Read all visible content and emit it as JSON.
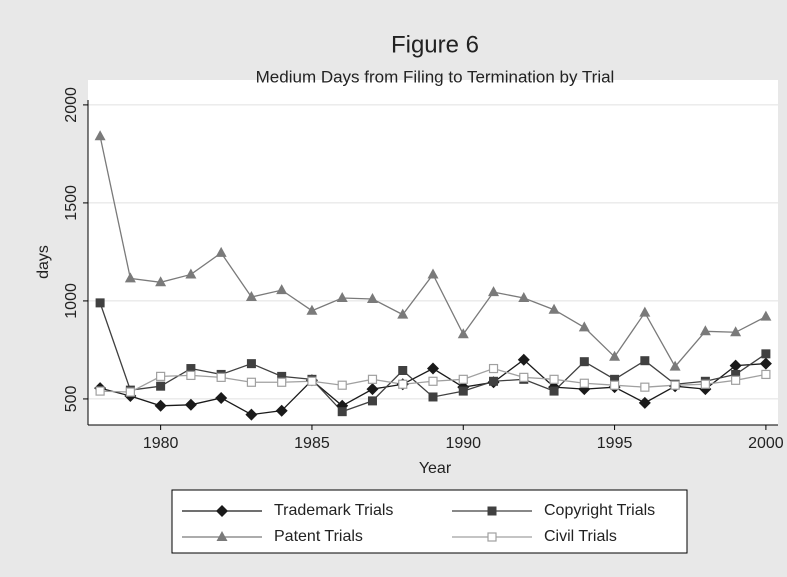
{
  "chart_data": {
    "type": "line",
    "title": "Figure 6",
    "subtitle": "Medium Days from Filing to Termination by Trial",
    "x_label": "Year",
    "y_label": "days",
    "x": [
      1978,
      1979,
      1980,
      1981,
      1982,
      1983,
      1984,
      1985,
      1986,
      1987,
      1988,
      1989,
      1990,
      1991,
      1992,
      1993,
      1994,
      1995,
      1996,
      1997,
      1998,
      1999,
      2000
    ],
    "series": [
      {
        "name": "Trademark Trials",
        "color": "#1a1a1a",
        "marker": "diamond",
        "values": [
          555,
          515,
          465,
          470,
          505,
          420,
          440,
          595,
          465,
          550,
          575,
          655,
          560,
          585,
          700,
          560,
          550,
          560,
          480,
          565,
          550,
          670,
          680
        ]
      },
      {
        "name": "Copyright Trials",
        "color": "#404040",
        "marker": "square",
        "values": [
          990,
          545,
          565,
          655,
          625,
          680,
          615,
          600,
          435,
          490,
          645,
          510,
          540,
          590,
          600,
          540,
          690,
          600,
          695,
          575,
          590,
          625,
          730
        ]
      },
      {
        "name": "Patent Trials",
        "color": "#7a7a7a",
        "marker": "triangle",
        "values": [
          1840,
          1115,
          1095,
          1135,
          1245,
          1020,
          1055,
          950,
          1015,
          1010,
          930,
          1135,
          830,
          1045,
          1015,
          955,
          865,
          715,
          940,
          665,
          845,
          840,
          920
        ]
      },
      {
        "name": "Civil Trials",
        "color": "#a0a0a0",
        "marker": "hollow-square",
        "values": [
          540,
          535,
          615,
          620,
          610,
          585,
          585,
          590,
          570,
          600,
          575,
          590,
          600,
          655,
          610,
          600,
          580,
          570,
          560,
          570,
          575,
          595,
          625
        ]
      }
    ],
    "xlim": [
      1977.6,
      2000.4
    ],
    "xticks": [
      1980,
      1985,
      1990,
      1995,
      2000
    ],
    "ylim": [
      367,
      2127
    ],
    "yticks": [
      500,
      1000,
      1500,
      2000
    ],
    "grid": true,
    "legend": "bottom"
  }
}
